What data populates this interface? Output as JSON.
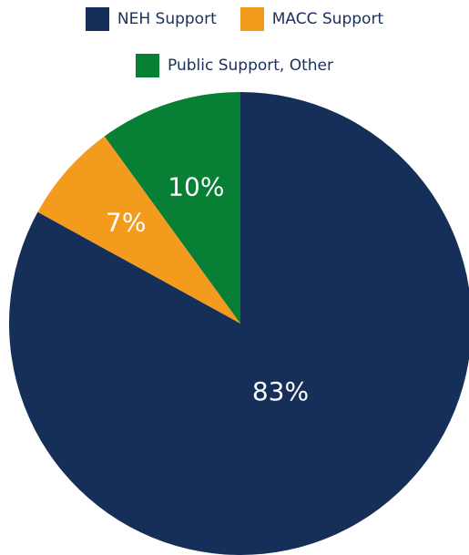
{
  "chart_data": {
    "type": "pie",
    "title": "",
    "categories": [
      "NEH Support",
      "MACC Support",
      "Public Support, Other"
    ],
    "values": [
      83,
      7,
      10
    ],
    "labels": [
      "83%",
      "7%",
      "10%"
    ],
    "colors": [
      "#162f58",
      "#f29b1d",
      "#078035"
    ],
    "legend_position": "top",
    "start": "top",
    "direction": "clockwise"
  }
}
